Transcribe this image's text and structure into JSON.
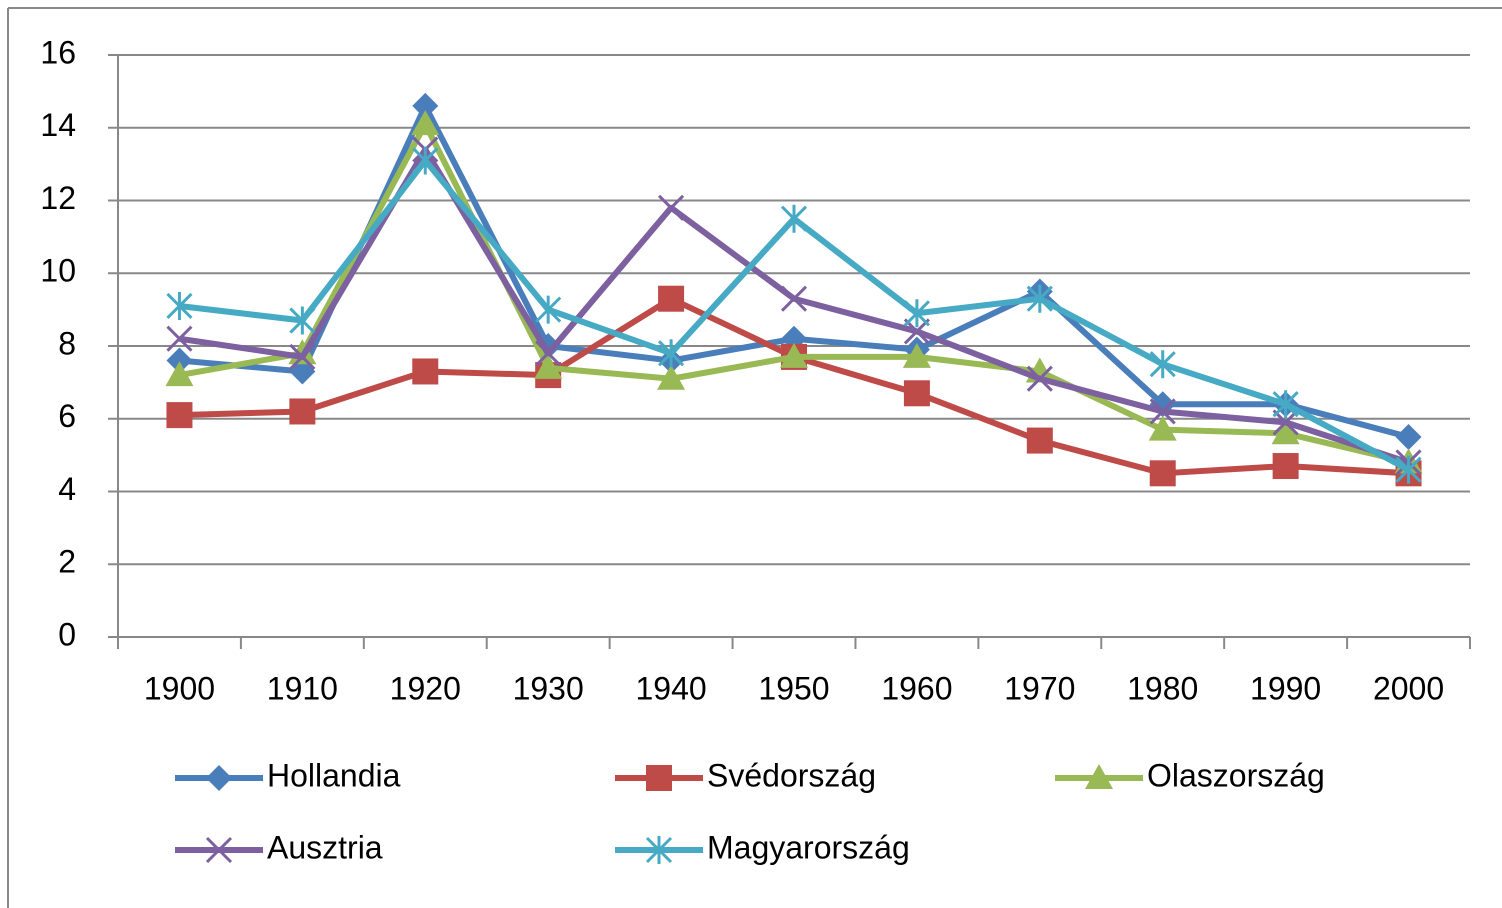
{
  "chart_data": {
    "type": "line",
    "categories": [
      "1900",
      "1910",
      "1920",
      "1930",
      "1940",
      "1950",
      "1960",
      "1970",
      "1980",
      "1990",
      "2000"
    ],
    "series": [
      {
        "name": "Hollandia",
        "color": "#4a7ebb",
        "marker": "diamond",
        "values": [
          7.6,
          7.3,
          14.6,
          8.0,
          7.6,
          8.2,
          7.9,
          9.5,
          6.4,
          6.4,
          5.5
        ]
      },
      {
        "name": "Svédország",
        "color": "#be4b48",
        "marker": "square",
        "values": [
          6.1,
          6.2,
          7.3,
          7.2,
          9.3,
          7.7,
          6.7,
          5.4,
          4.5,
          4.7,
          4.5
        ]
      },
      {
        "name": "Olaszország",
        "color": "#98b954",
        "marker": "triangle",
        "values": [
          7.2,
          7.8,
          14.1,
          7.4,
          7.1,
          7.7,
          7.7,
          7.3,
          5.7,
          5.6,
          4.8
        ]
      },
      {
        "name": "Ausztria",
        "color": "#7d60a0",
        "marker": "x",
        "values": [
          8.2,
          7.7,
          13.4,
          7.8,
          11.8,
          9.3,
          8.4,
          7.1,
          6.2,
          5.9,
          4.8
        ]
      },
      {
        "name": "Magyarország",
        "color": "#46aac5",
        "marker": "star",
        "values": [
          9.1,
          8.7,
          13.1,
          9.0,
          7.8,
          11.5,
          8.9,
          9.3,
          7.5,
          6.4,
          4.6
        ]
      }
    ],
    "ylim": [
      0,
      16
    ],
    "yticks": [
      0,
      2,
      4,
      6,
      8,
      10,
      12,
      14,
      16
    ],
    "grid": true,
    "legend": "bottom"
  }
}
